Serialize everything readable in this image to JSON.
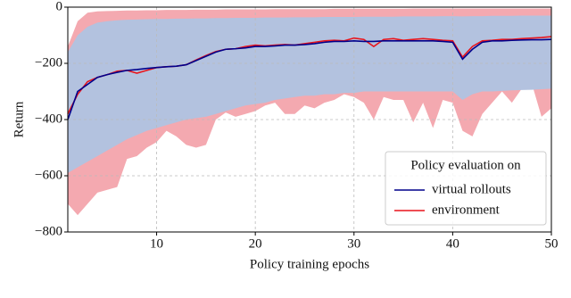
{
  "chart_data": {
    "type": "band-line",
    "xlabel": "Policy training epochs",
    "ylabel": "Return",
    "x": [
      1,
      2,
      3,
      4,
      5,
      6,
      7,
      8,
      9,
      10,
      11,
      12,
      13,
      14,
      15,
      16,
      17,
      18,
      19,
      20,
      21,
      22,
      23,
      24,
      25,
      26,
      27,
      28,
      29,
      30,
      31,
      32,
      33,
      34,
      35,
      36,
      37,
      38,
      39,
      40,
      41,
      42,
      43,
      44,
      45,
      46,
      47,
      48,
      49,
      50
    ],
    "xlim": [
      1,
      50
    ],
    "ylim": [
      -800,
      0
    ],
    "xticks": [
      10,
      20,
      30,
      40,
      50
    ],
    "yticks": [
      {
        "value": -800,
        "label": "−800"
      },
      {
        "value": -600,
        "label": "−600"
      },
      {
        "value": -400,
        "label": "−400"
      },
      {
        "value": -200,
        "label": "−200"
      },
      0
    ],
    "grid": true,
    "legend": {
      "title": "Policy evaluation on",
      "position": "lower right"
    },
    "series": [
      {
        "name": "virtual rollouts",
        "color": "#00008b",
        "band_color": "#b3c2df",
        "values": [
          -400,
          -300,
          -275,
          -250,
          -240,
          -232,
          -225,
          -222,
          -218,
          -215,
          -212,
          -210,
          -205,
          -190,
          -175,
          -160,
          -150,
          -148,
          -145,
          -140,
          -140,
          -138,
          -135,
          -135,
          -133,
          -130,
          -125,
          -122,
          -122,
          -120,
          -122,
          -122,
          -120,
          -120,
          -120,
          -120,
          -120,
          -120,
          -122,
          -125,
          -185,
          -150,
          -125,
          -120,
          -120,
          -118,
          -117,
          -116,
          -116,
          -115
        ],
        "lower": [
          -590,
          -570,
          -550,
          -530,
          -510,
          -490,
          -470,
          -455,
          -440,
          -430,
          -420,
          -410,
          -400,
          -395,
          -390,
          -380,
          -370,
          -360,
          -350,
          -345,
          -340,
          -330,
          -325,
          -320,
          -315,
          -315,
          -310,
          -310,
          -305,
          -305,
          -300,
          -300,
          -300,
          -300,
          -300,
          -300,
          -300,
          -300,
          -300,
          -300,
          -330,
          -310,
          -300,
          -300,
          -298,
          -296,
          -295,
          -294,
          -292,
          -290
        ],
        "upper": [
          -160,
          -100,
          -70,
          -55,
          -50,
          -47,
          -45,
          -44,
          -43,
          -42,
          -42,
          -41,
          -41,
          -40,
          -40,
          -39,
          -39,
          -38,
          -38,
          -38,
          -37,
          -37,
          -37,
          -36,
          -36,
          -36,
          -35,
          -35,
          -35,
          -35,
          -34,
          -34,
          -34,
          -34,
          -33,
          -33,
          -33,
          -33,
          -32,
          -32,
          -33,
          -32,
          -32,
          -31,
          -31,
          -31,
          -30,
          -30,
          -30,
          -30
        ]
      },
      {
        "name": "environment",
        "color": "#e8141c",
        "band_color": "#f4a9b0",
        "values": [
          -380,
          -310,
          -265,
          -250,
          -240,
          -228,
          -225,
          -235,
          -225,
          -215,
          -212,
          -210,
          -205,
          -188,
          -172,
          -158,
          -150,
          -148,
          -140,
          -135,
          -138,
          -135,
          -133,
          -135,
          -130,
          -125,
          -120,
          -118,
          -120,
          -110,
          -115,
          -140,
          -115,
          -112,
          -118,
          -115,
          -112,
          -115,
          -118,
          -120,
          -178,
          -140,
          -120,
          -118,
          -115,
          -115,
          -112,
          -110,
          -108,
          -105
        ],
        "lower": [
          -700,
          -740,
          -700,
          -660,
          -650,
          -640,
          -540,
          -530,
          -500,
          -480,
          -440,
          -460,
          -490,
          -500,
          -490,
          -400,
          -375,
          -390,
          -380,
          -370,
          -350,
          -340,
          -380,
          -380,
          -350,
          -360,
          -340,
          -330,
          -310,
          -320,
          -340,
          -400,
          -320,
          -330,
          -330,
          -410,
          -340,
          -430,
          -330,
          -340,
          -440,
          -460,
          -380,
          -340,
          -300,
          -340,
          -290,
          -270,
          -390,
          -360
        ],
        "upper": [
          -140,
          -50,
          -20,
          -15,
          -14,
          -13,
          -12,
          -12,
          -11,
          -11,
          -10,
          -10,
          -10,
          -9,
          -9,
          -9,
          -8,
          -8,
          -8,
          -8,
          -8,
          -7,
          -7,
          -7,
          -7,
          -7,
          -7,
          -6,
          -6,
          -6,
          -6,
          -6,
          -6,
          -6,
          -6,
          -5,
          -5,
          -5,
          -5,
          -5,
          -5,
          -5,
          -5,
          -5,
          -5,
          -5,
          -5,
          -5,
          -5,
          -5
        ]
      }
    ]
  }
}
